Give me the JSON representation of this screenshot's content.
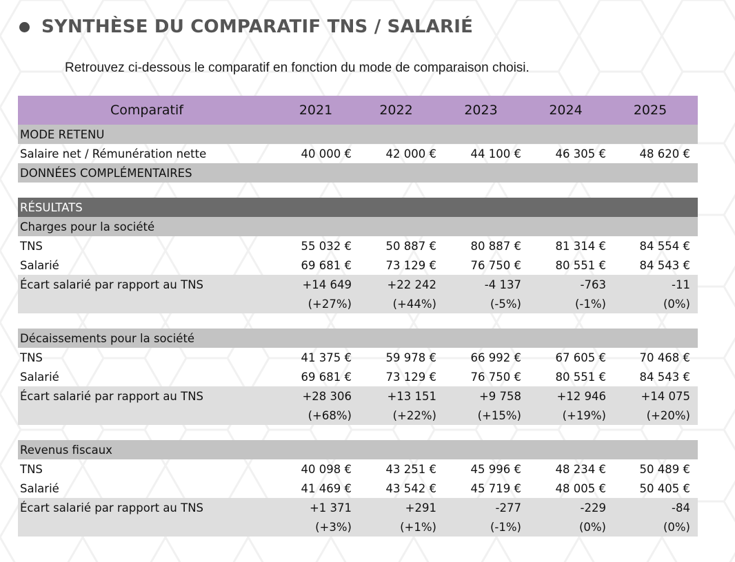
{
  "title": "SYNTHÈSE DU COMPARATIF TNS / SALARIÉ",
  "subtitle": "Retrouvez ci-dessous le comparatif en fonction du mode de comparaison choisi.",
  "table": {
    "header": {
      "label": "Comparatif",
      "years": [
        "2021",
        "2022",
        "2023",
        "2024",
        "2025"
      ]
    },
    "mode_retenu": "MODE RETENU",
    "salaire": {
      "label": "Salaire net / Rémunération nette",
      "values": [
        "40 000 €",
        "42 000 €",
        "44 100 €",
        "46 305 €",
        "48 620 €"
      ]
    },
    "donnees": "DONNÉES COMPLÉMENTAIRES",
    "resultats": "RÉSULTATS",
    "sections": [
      {
        "title": "Charges pour la société",
        "tns": {
          "label": "TNS",
          "values": [
            "55 032 €",
            "50 887 €",
            "80 887 €",
            "81 314 €",
            "84 554 €"
          ]
        },
        "salarie": {
          "label": "Salarié",
          "values": [
            "69 681 €",
            "73 129 €",
            "76 750 €",
            "80 551 €",
            "84 543 €"
          ]
        },
        "ecart": {
          "label": "Écart salarié par rapport au TNS",
          "values": [
            "+14 649",
            "+22 242",
            "-4 137",
            "-763",
            "-11"
          ],
          "pct": [
            "(+27%)",
            "(+44%)",
            "(-5%)",
            "(-1%)",
            "(0%)"
          ]
        }
      },
      {
        "title": "Décaissements pour la société",
        "tns": {
          "label": "TNS",
          "values": [
            "41 375 €",
            "59 978 €",
            "66 992 €",
            "67 605 €",
            "70 468 €"
          ]
        },
        "salarie": {
          "label": "Salarié",
          "values": [
            "69 681 €",
            "73 129 €",
            "76 750 €",
            "80 551 €",
            "84 543 €"
          ]
        },
        "ecart": {
          "label": "Écart salarié par rapport au TNS",
          "values": [
            "+28 306",
            "+13 151",
            "+9 758",
            "+12 946",
            "+14 075"
          ],
          "pct": [
            "(+68%)",
            "(+22%)",
            "(+15%)",
            "(+19%)",
            "(+20%)"
          ]
        }
      },
      {
        "title": "Revenus fiscaux",
        "tns": {
          "label": "TNS",
          "values": [
            "40 098 €",
            "43 251 €",
            "45 996 €",
            "48 234 €",
            "50 489 €"
          ]
        },
        "salarie": {
          "label": "Salarié",
          "values": [
            "41 469 €",
            "43 542 €",
            "45 719 €",
            "48 005 €",
            "50 405 €"
          ]
        },
        "ecart": {
          "label": "Écart salarié par rapport au TNS",
          "values": [
            "+1 371",
            "+291",
            "-277",
            "-229",
            "-84"
          ],
          "pct": [
            "(+3%)",
            "(+1%)",
            "(-1%)",
            "(0%)",
            "(0%)"
          ]
        }
      }
    ]
  },
  "colors": {
    "header_purple": "#ba9bcc",
    "section_gray": "#c3c3c3",
    "result_dark": "#6b6b6b",
    "shade": "#dedede",
    "title_gray": "#555555"
  }
}
